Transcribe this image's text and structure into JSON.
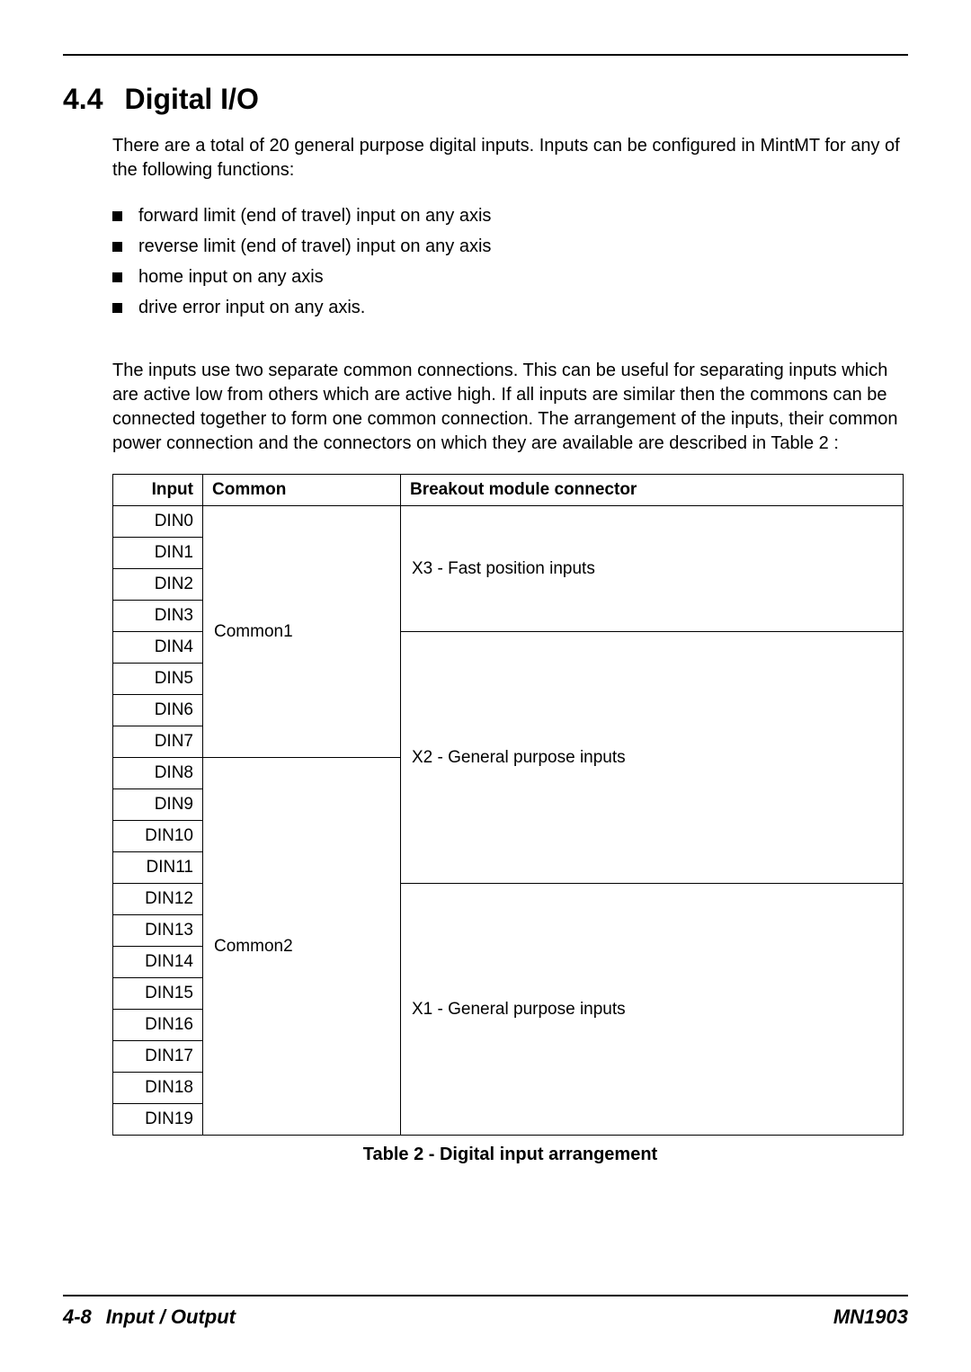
{
  "section_number": "4.4",
  "section_title": "Digital I/O",
  "intro_paragraph": "There are a total of 20 general purpose digital inputs. Inputs can be configured in MintMT for any of the following functions:",
  "bullets": [
    "forward limit (end of travel) input on any axis",
    "reverse limit (end of travel) input on any axis",
    "home input on any axis",
    "drive error input on any axis."
  ],
  "second_paragraph": "The inputs use two separate common connections. This can be useful for separating inputs which are active low from others which are active high. If all inputs are similar then the commons can be connected together to form one common connection. The arrangement of the inputs, their common power connection and the connectors on which they are available are described in Table 2 :",
  "table": {
    "headers": {
      "input": "Input",
      "common": "Common",
      "breakout": "Breakout module connector"
    },
    "inputs": [
      "DIN0",
      "DIN1",
      "DIN2",
      "DIN3",
      "DIN4",
      "DIN5",
      "DIN6",
      "DIN7",
      "DIN8",
      "DIN9",
      "DIN10",
      "DIN11",
      "DIN12",
      "DIN13",
      "DIN14",
      "DIN15",
      "DIN16",
      "DIN17",
      "DIN18",
      "DIN19"
    ],
    "commons": {
      "c1": "Common1",
      "c2": "Common2"
    },
    "breakouts": {
      "x3": "X3 - Fast position inputs",
      "x2": "X2 - General purpose inputs",
      "x1": "X1 - General purpose inputs"
    },
    "caption": "Table 2 - Digital input arrangement"
  },
  "footer": {
    "page_num": "4-8",
    "section": "Input / Output",
    "doc_id": "MN1903"
  }
}
